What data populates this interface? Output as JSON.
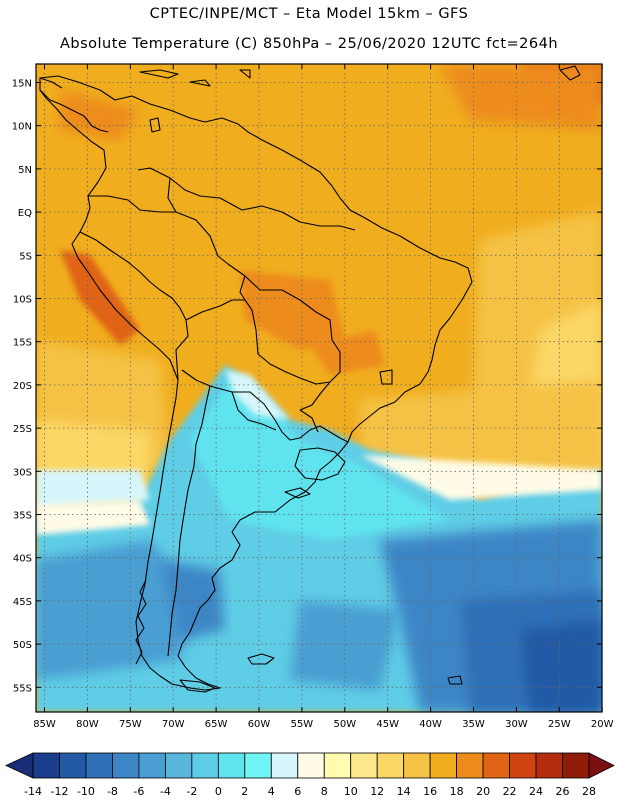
{
  "header": {
    "line1": "CPTEC/INPE/MCT –  Eta Model 15km – GFS",
    "line2": "Absolute Temperature (C) 850hPa – 25/06/2020 12UTC fct=264h"
  },
  "map": {
    "lat_labels": [
      "15N",
      "10N",
      "5N",
      "EQ",
      "5S",
      "10S",
      "15S",
      "20S",
      "25S",
      "30S",
      "35S",
      "40S",
      "45S",
      "50S",
      "55S"
    ],
    "lon_labels": [
      "85W",
      "80W",
      "75W",
      "70W",
      "65W",
      "60W",
      "55W",
      "50W",
      "45W",
      "40W",
      "35W",
      "30W",
      "25W",
      "20W"
    ]
  },
  "colorbar": {
    "labels": [
      "-14",
      "-12",
      "-10",
      "-8",
      "-6",
      "-4",
      "-2",
      "0",
      "2",
      "4",
      "6",
      "8",
      "10",
      "12",
      "14",
      "16",
      "18",
      "20",
      "22",
      "24",
      "26",
      "28"
    ],
    "colors": [
      "#1a3d8c",
      "#245aa5",
      "#2f70b8",
      "#3c86c6",
      "#4a9ed2",
      "#58b6dc",
      "#5fcde6",
      "#5fe3ef",
      "#6ff5f5",
      "#d6f6fb",
      "#fffbe6",
      "#fffbb0",
      "#fde98a",
      "#fbd766",
      "#f5c245",
      "#f0ad1e",
      "#ed8c1a",
      "#e06414",
      "#cf4311",
      "#b32d0c",
      "#8f1d0a"
    ],
    "min_color": "#1a2e78",
    "max_color": "#7a0f14"
  },
  "colors": {
    "frame": "#000000",
    "grid": "#666666",
    "coast": "#000000"
  }
}
